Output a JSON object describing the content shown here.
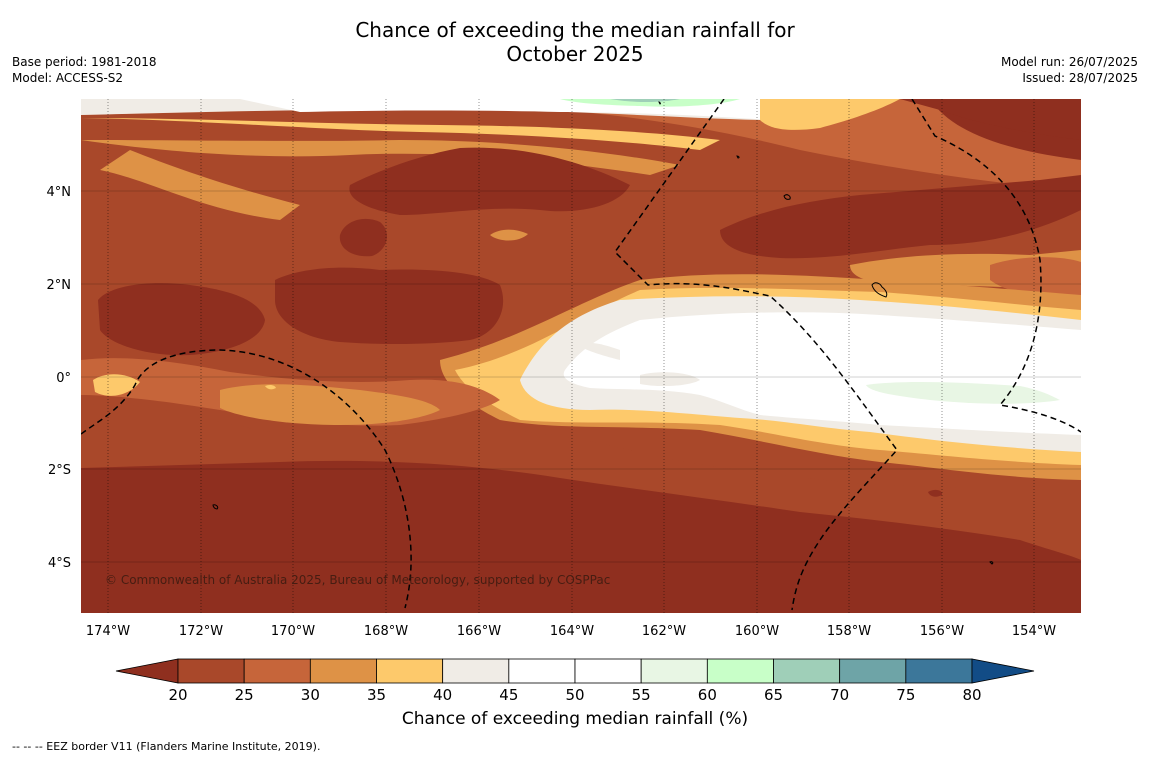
{
  "header": {
    "title_line1": "Chance of exceeding the median rainfall for",
    "title_line2": "October 2025",
    "base_period": "Base period: 1981-2018",
    "model": "Model: ACCESS-S2",
    "model_run": "Model run: 26/07/2025",
    "issued": "Issued: 28/07/2025"
  },
  "map": {
    "lon_labels": [
      "174°W",
      "172°W",
      "170°W",
      "168°W",
      "166°W",
      "164°W",
      "162°W",
      "160°W",
      "158°W",
      "156°W",
      "154°W"
    ],
    "lat_labels": [
      "4°N",
      "2°N",
      "0°",
      "2°S",
      "4°S"
    ],
    "copyright": "© Commonwealth of Australia 2025, Bureau of Meteorology, supported by COSPPac",
    "colors": {
      "lt20": "#8f2f1f",
      "p20_25": "#a9482a",
      "p25_30": "#c6653a",
      "p30_35": "#de9246",
      "p35_40": "#fdc96b",
      "p40_45": "#f0ece6",
      "p45_55": "#ffffff",
      "p55_60": "#e8f6e4",
      "p60_65": "#c8ffc8"
    }
  },
  "colorbar": {
    "ticks": [
      "20",
      "25",
      "30",
      "35",
      "40",
      "45",
      "50",
      "55",
      "60",
      "65",
      "70",
      "75",
      "80"
    ],
    "colors": [
      "#a9482a",
      "#c6653a",
      "#de9246",
      "#fdc96b",
      "#f0ece6",
      "#ffffff",
      "#ffffff",
      "#e8f6e4",
      "#c8ffc8",
      "#9fcfb8",
      "#6ea4a7",
      "#3c779a"
    ],
    "low_color": "#8f2f1f",
    "high_color": "#124c86",
    "label": "Chance of exceeding median rainfall (%)"
  },
  "footnote": "--  --  -- EEZ border V11 (Flanders Marine Institute, 2019)."
}
